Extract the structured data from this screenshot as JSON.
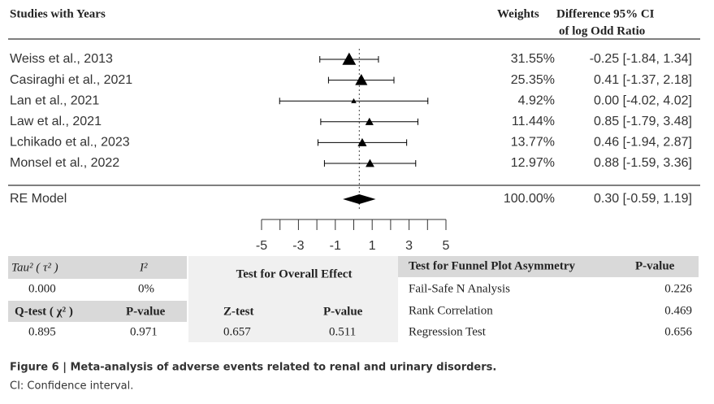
{
  "chart_data": {
    "type": "forest",
    "columns": {
      "study": "Studies with Years",
      "weight": "Weights",
      "ci": [
        "Difference 95% CI",
        "of log Odd Ratio"
      ]
    },
    "studies": {
      "names": [
        "Weiss et  al., 2013",
        "Casiraghi  et al., 2021",
        "Lan et al., 2021",
        "Law et al., 2021",
        "Lchikado et al., 2023",
        "Monsel et al., 2022"
      ],
      "weights": [
        31.55,
        25.35,
        4.92,
        11.44,
        13.77,
        12.97
      ],
      "value_labels": [
        "31.55%",
        "25.35%",
        "4.92%",
        "11.44%",
        "13.77%",
        "12.97%"
      ],
      "estimates": [
        -0.25,
        0.41,
        0.0,
        0.85,
        0.46,
        0.88
      ],
      "ci_low": [
        -1.84,
        -1.37,
        -4.02,
        -1.79,
        -1.94,
        -1.59
      ],
      "ci_high": [
        1.34,
        2.18,
        4.02,
        3.48,
        2.87,
        3.36
      ],
      "ci_labels": [
        "-0.25 [-1.84, 1.34]",
        "0.41 [-1.37, 2.18]",
        "0.00 [-4.02, 4.02]",
        "0.85 [-1.79, 3.48]",
        "0.46 [-1.94, 2.87]",
        "0.88 [-1.59, 3.36]"
      ]
    },
    "summary": {
      "name": "RE Model",
      "weight": 100,
      "value_label": "100.00%",
      "estimate": 0.3,
      "ci_low": -0.59,
      "ci_high": 1.19,
      "ci_label": "0.30 [-0.59, 1.19]"
    },
    "xlim": [
      -5,
      5
    ],
    "xticks": [
      -5,
      -3,
      -1,
      1,
      3,
      5
    ],
    "xminor_ticks": [
      -4,
      -2,
      0,
      2,
      4
    ],
    "color": "#000000",
    "reference_line": true
  },
  "tables": {
    "heterogeneity": {
      "headers": [
        "Tau² ( τ² )",
        "I²"
      ],
      "values": [
        "0.000",
        "0%"
      ],
      "headers2": [
        "Q-test ( χ² )",
        "P-value"
      ],
      "values2": [
        "0.895",
        "0.971"
      ]
    },
    "overall": {
      "title": "Test for Overall Effect",
      "headers": [
        "Z-test",
        "P-value"
      ],
      "values": [
        "0.657",
        "0.511"
      ]
    },
    "funnel": {
      "headers": [
        "Test for Funnel Plot Asymmetry",
        "P-value"
      ],
      "rows": [
        [
          "Fail-Safe N Analysis",
          "0.226"
        ],
        [
          "Rank Correlation",
          "0.469"
        ],
        [
          "Regression Test",
          "0.656"
        ]
      ]
    }
  },
  "caption": {
    "title": "Figure 6  |  Meta-analysis of adverse events related to renal and urinary disorders.",
    "note": "CI: Confidence interval."
  }
}
